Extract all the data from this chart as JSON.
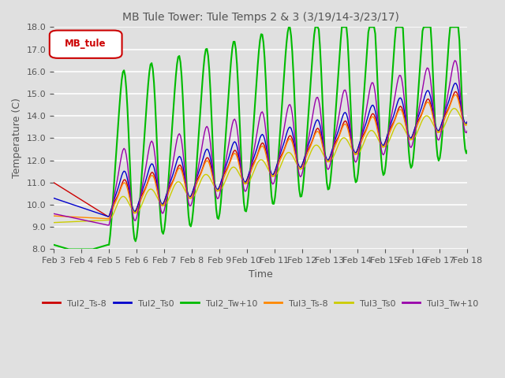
{
  "title": "MB Tule Tower: Tule Temps 2 & 3 (3/19/14-3/23/17)",
  "xlabel": "Time",
  "ylabel": "Temperature (C)",
  "ylim": [
    8.0,
    18.0
  ],
  "yticks": [
    8.0,
    9.0,
    10.0,
    11.0,
    12.0,
    13.0,
    14.0,
    15.0,
    16.0,
    17.0,
    18.0
  ],
  "xtick_labels": [
    "Feb 3",
    "Feb 4",
    "Feb 5",
    "Feb 6",
    "Feb 7",
    "Feb 8",
    "Feb 9",
    "Feb 10",
    "Feb 11",
    "Feb 12",
    "Feb 13",
    "Feb 14",
    "Feb 15",
    "Feb 16",
    "Feb 17",
    "Feb 18"
  ],
  "background_color": "#e0e0e0",
  "plot_bg_color": "#e0e0e0",
  "legend_label": "MB_tule",
  "series": {
    "Tul2_Ts-8": {
      "color": "#cc0000",
      "lw": 1.0
    },
    "Tul2_Ts0": {
      "color": "#0000cc",
      "lw": 1.0
    },
    "Tul2_Tw+10": {
      "color": "#00bb00",
      "lw": 1.5
    },
    "Tul3_Ts-8": {
      "color": "#ff8800",
      "lw": 1.0
    },
    "Tul3_Ts0": {
      "color": "#cccc00",
      "lw": 1.0
    },
    "Tul3_Tw+10": {
      "color": "#9900aa",
      "lw": 1.0
    }
  }
}
